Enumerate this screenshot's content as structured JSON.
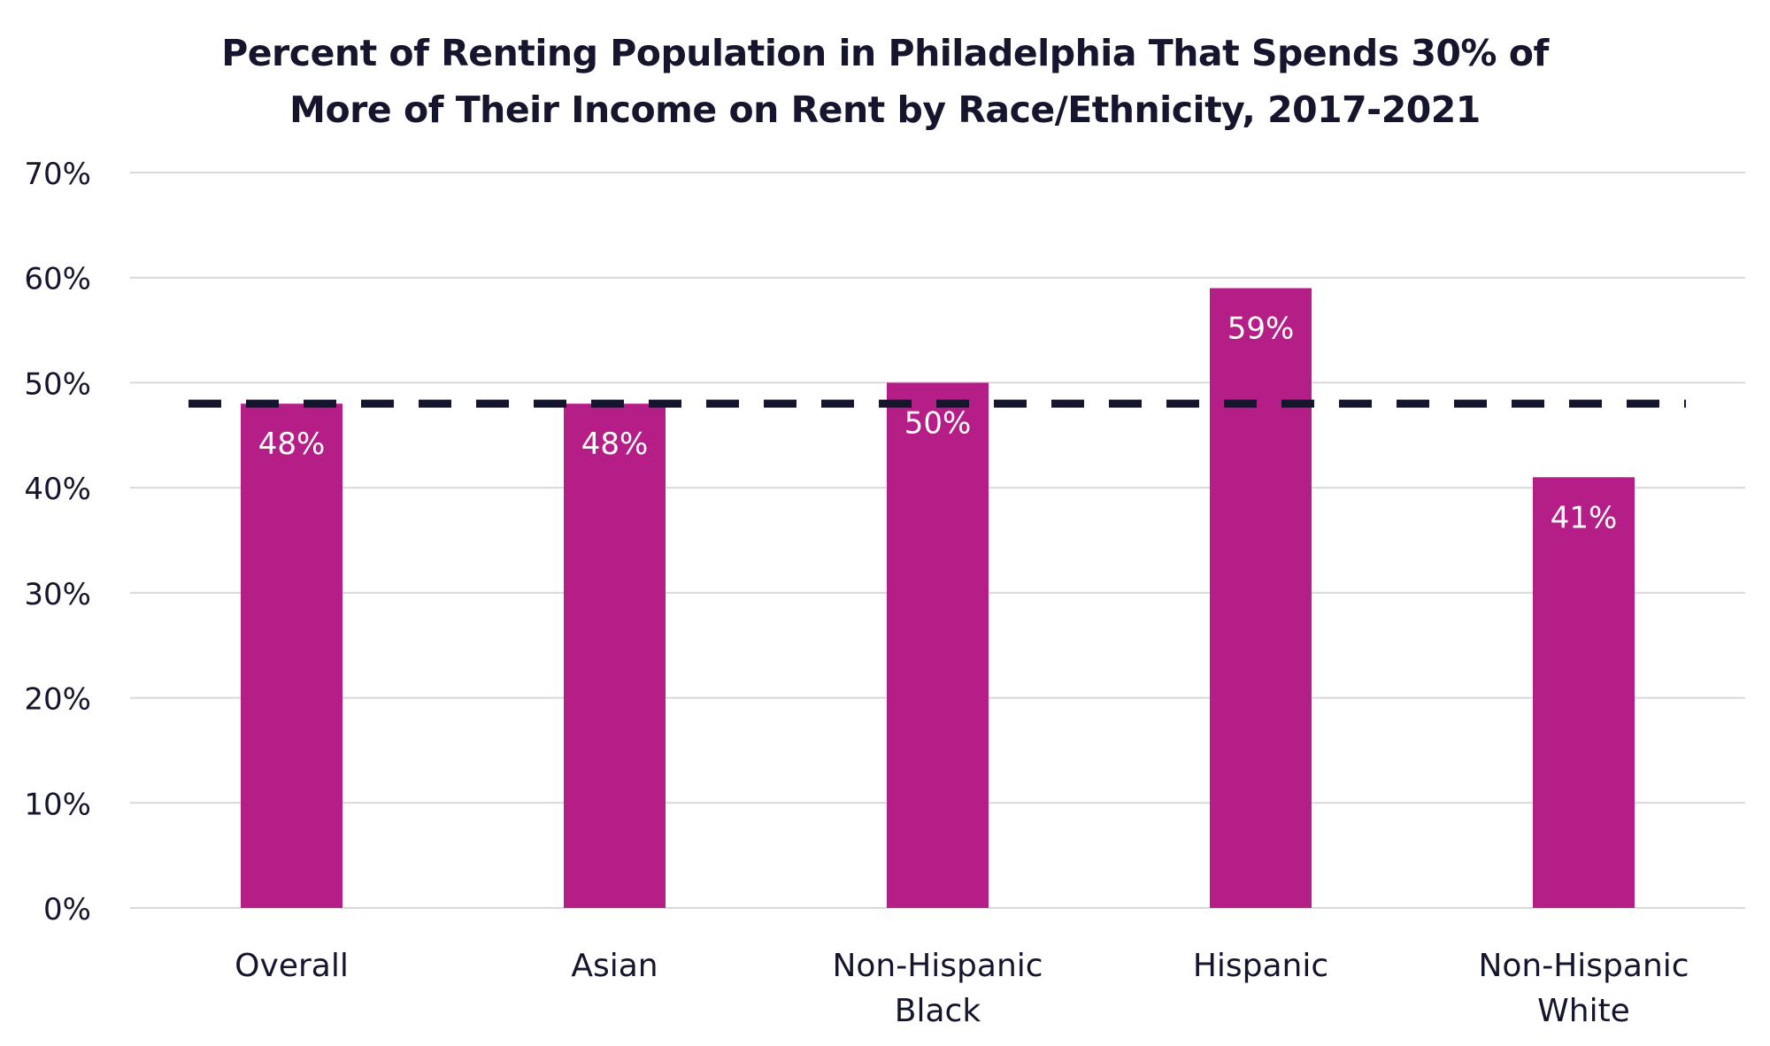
{
  "chart_data": {
    "type": "bar",
    "title": "Percent of Renting Population in Philadelphia That Spends 30% of More of Their Income on Rent by Race/Ethnicity, 2017-2021",
    "title_lines": [
      "Percent of Renting Population in Philadelphia That Spends 30% of",
      "More of Their Income on Rent by Race/Ethnicity, 2017-2021"
    ],
    "categories": [
      [
        "Overall"
      ],
      [
        "Asian"
      ],
      [
        "Non-Hispanic",
        "Black"
      ],
      [
        "Hispanic"
      ],
      [
        "Non-Hispanic",
        "White"
      ]
    ],
    "values": [
      48,
      48,
      50,
      59,
      41
    ],
    "data_labels": [
      "48%",
      "48%",
      "50%",
      "59%",
      "41%"
    ],
    "reference_line": {
      "value": 48,
      "style": "dashed"
    },
    "xlabel": "",
    "ylabel": "",
    "ylim": [
      0,
      70
    ],
    "yticks": [
      0,
      10,
      20,
      30,
      40,
      50,
      60,
      70
    ],
    "ytick_labels": [
      "0%",
      "10%",
      "20%",
      "30%",
      "40%",
      "50%",
      "60%",
      "70%"
    ],
    "grid": true,
    "legend": "none",
    "colors": {
      "bar": "#b51e87",
      "reference_line": "#15152e",
      "grid": "#d9d9d9",
      "text": "#15152e",
      "data_label": "#ffffff"
    }
  }
}
